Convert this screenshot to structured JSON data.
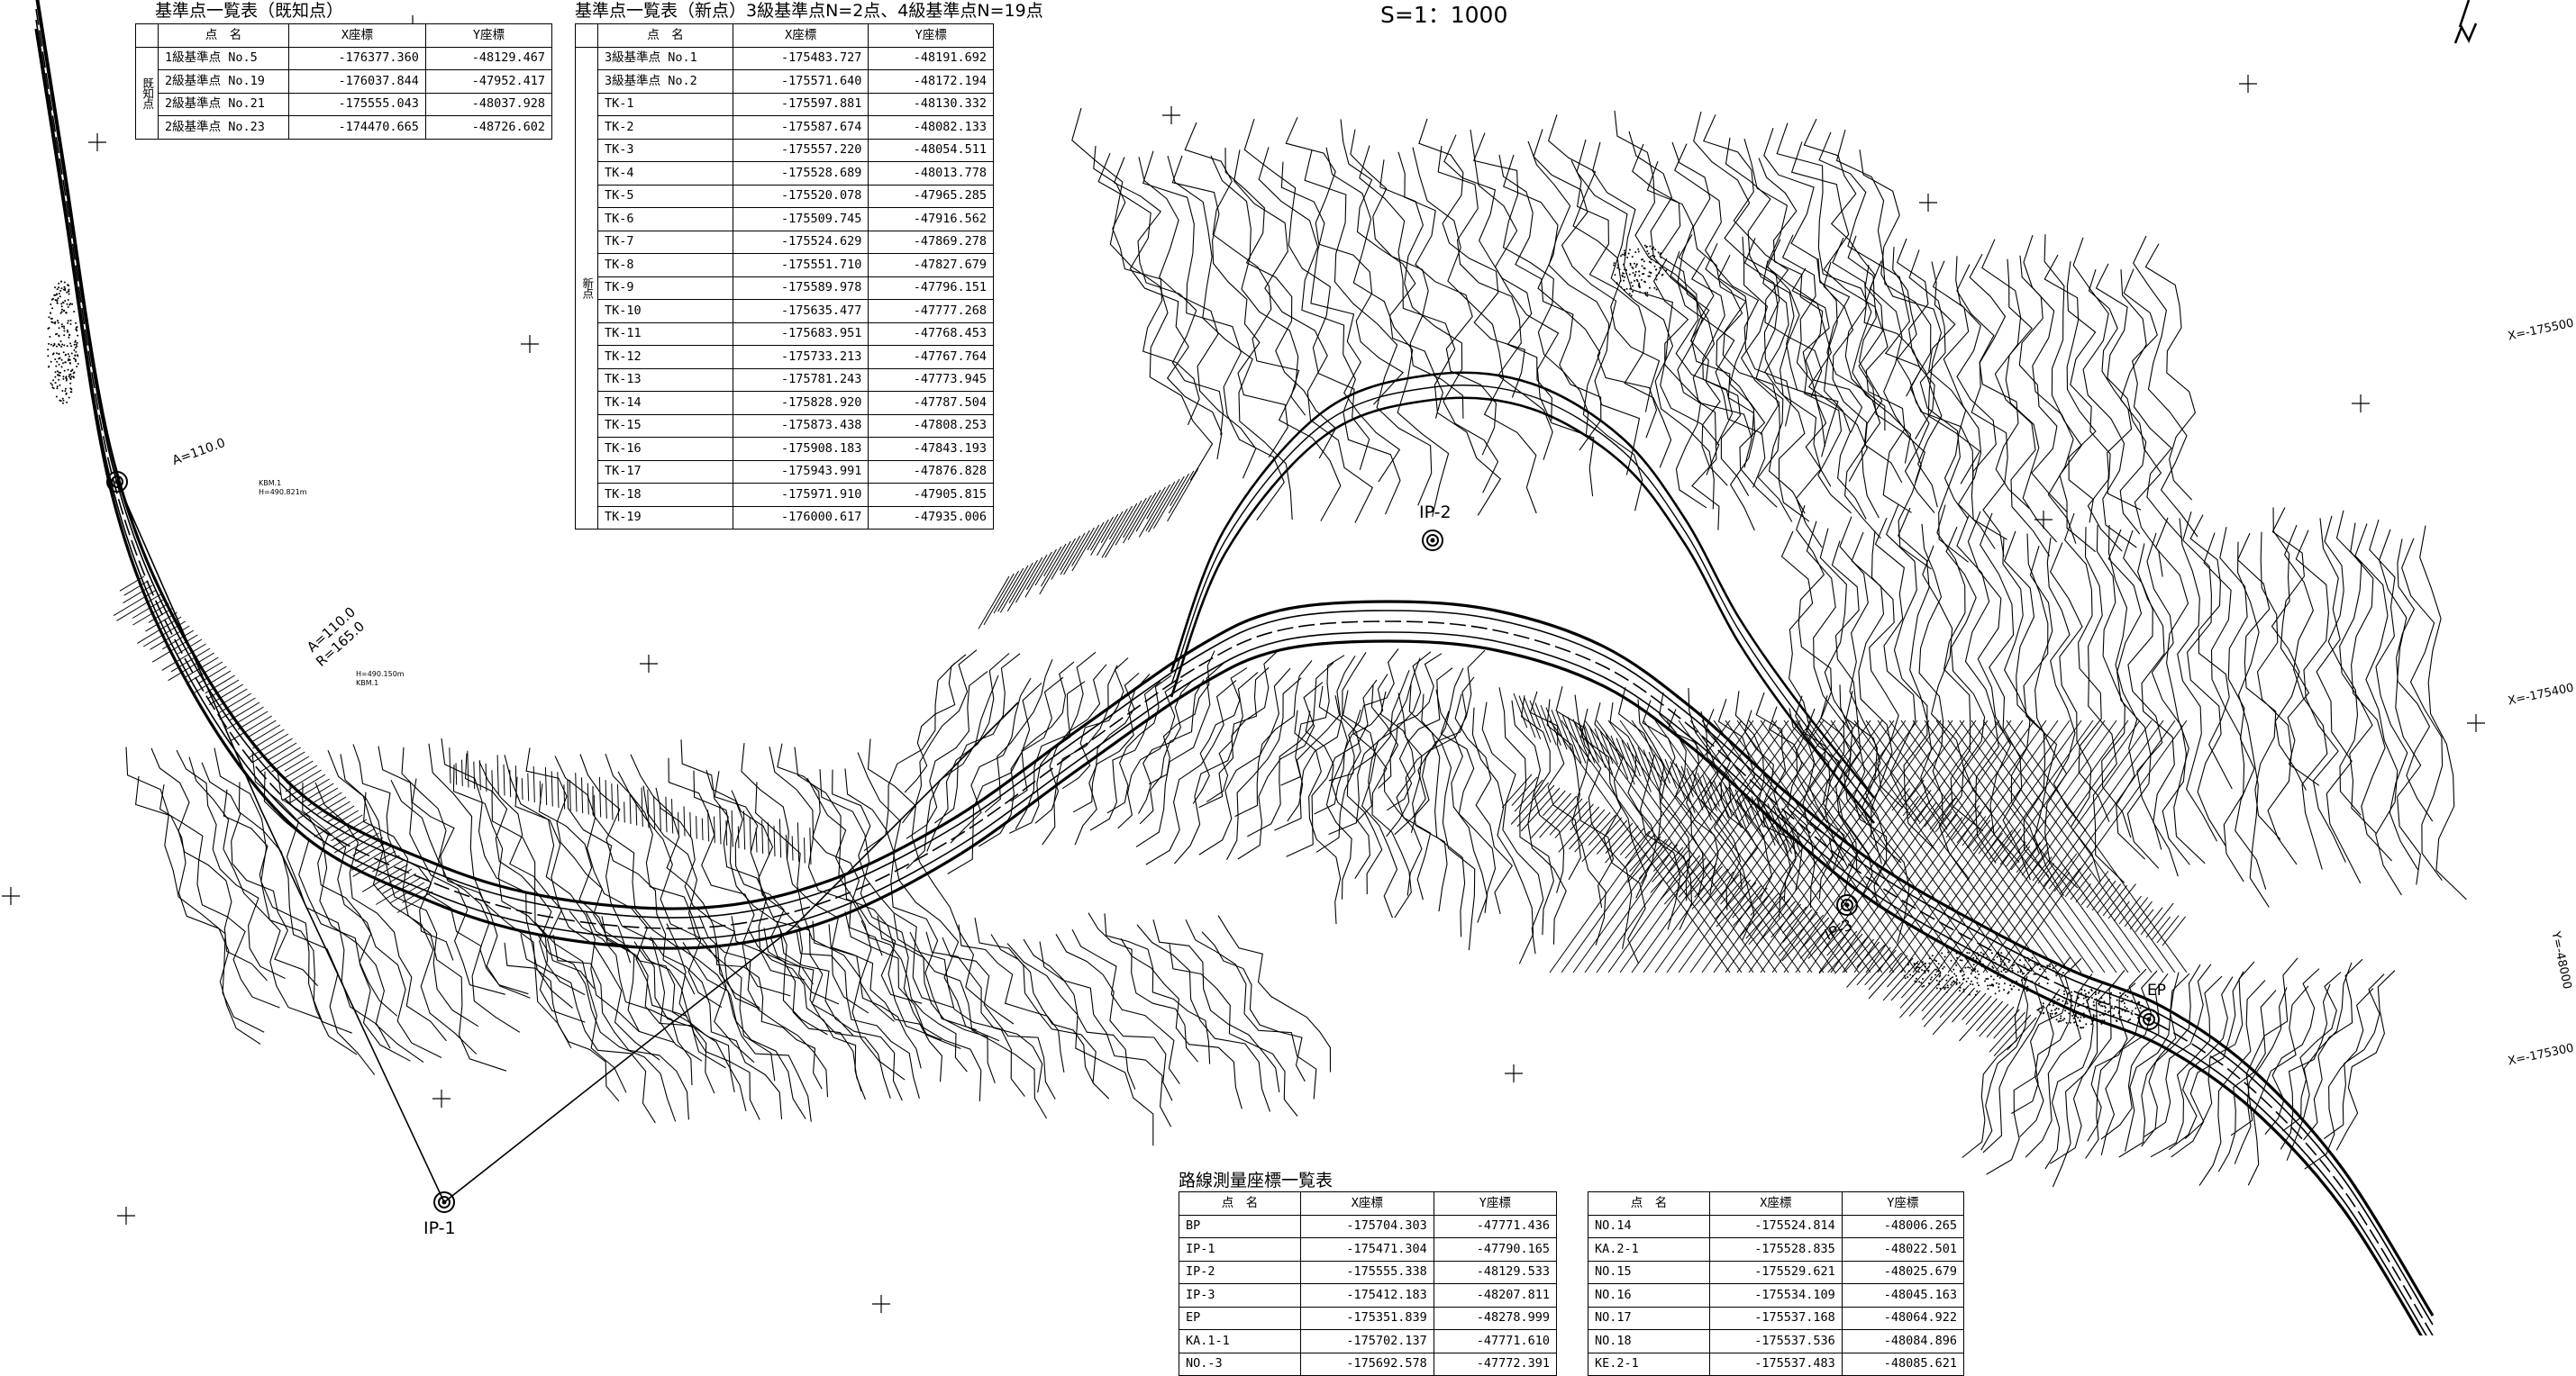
{
  "scale_text": "S=1：1000",
  "labels": {
    "ip1": "IP-1",
    "ip2": "IP-2",
    "ip3": "IP-3",
    "ep": "EP",
    "grid_x1": "X=-175500",
    "grid_x2": "X=-175400",
    "grid_x3": "X=-175300",
    "grid_y1": "Y=-48000",
    "curve1_a": "A=110.0",
    "curve1_r": "R=165.0",
    "curve_top_a": "A=110.0",
    "bm1_name": "KBM.1",
    "bm1_h": "H=490.821m",
    "bm2_name": "KBM.1",
    "bm2_h": "H=490.150m"
  },
  "table_known": {
    "title": "基準点一覧表（既知点）",
    "headers": [
      "点　名",
      "X座標",
      "Y座標"
    ],
    "group_label": "既知点",
    "rows": [
      {
        "name": "1級基準点 No.5",
        "x": "-176377.360",
        "y": "-48129.467"
      },
      {
        "name": "2級基準点 No.19",
        "x": "-176037.844",
        "y": "-47952.417"
      },
      {
        "name": "2級基準点 No.21",
        "x": "-175555.043",
        "y": "-48037.928"
      },
      {
        "name": "2級基準点 No.23",
        "x": "-174470.665",
        "y": "-48726.602"
      }
    ]
  },
  "table_new": {
    "title": "基準点一覧表（新点）3級基準点N=2点、4級基準点N=19点",
    "headers": [
      "点　名",
      "X座標",
      "Y座標"
    ],
    "group_label": "新点",
    "rows": [
      {
        "name": "3級基準点 No.1",
        "x": "-175483.727",
        "y": "-48191.692"
      },
      {
        "name": "3級基準点 No.2",
        "x": "-175571.640",
        "y": "-48172.194"
      },
      {
        "name": "TK-1",
        "x": "-175597.881",
        "y": "-48130.332"
      },
      {
        "name": "TK-2",
        "x": "-175587.674",
        "y": "-48082.133"
      },
      {
        "name": "TK-3",
        "x": "-175557.220",
        "y": "-48054.511"
      },
      {
        "name": "TK-4",
        "x": "-175528.689",
        "y": "-48013.778"
      },
      {
        "name": "TK-5",
        "x": "-175520.078",
        "y": "-47965.285"
      },
      {
        "name": "TK-6",
        "x": "-175509.745",
        "y": "-47916.562"
      },
      {
        "name": "TK-7",
        "x": "-175524.629",
        "y": "-47869.278"
      },
      {
        "name": "TK-8",
        "x": "-175551.710",
        "y": "-47827.679"
      },
      {
        "name": "TK-9",
        "x": "-175589.978",
        "y": "-47796.151"
      },
      {
        "name": "TK-10",
        "x": "-175635.477",
        "y": "-47777.268"
      },
      {
        "name": "TK-11",
        "x": "-175683.951",
        "y": "-47768.453"
      },
      {
        "name": "TK-12",
        "x": "-175733.213",
        "y": "-47767.764"
      },
      {
        "name": "TK-13",
        "x": "-175781.243",
        "y": "-47773.945"
      },
      {
        "name": "TK-14",
        "x": "-175828.920",
        "y": "-47787.504"
      },
      {
        "name": "TK-15",
        "x": "-175873.438",
        "y": "-47808.253"
      },
      {
        "name": "TK-16",
        "x": "-175908.183",
        "y": "-47843.193"
      },
      {
        "name": "TK-17",
        "x": "-175943.991",
        "y": "-47876.828"
      },
      {
        "name": "TK-18",
        "x": "-175971.910",
        "y": "-47905.815"
      },
      {
        "name": "TK-19",
        "x": "-176000.617",
        "y": "-47935.006"
      }
    ]
  },
  "table_route": {
    "title": "路線測量座標一覧表",
    "headers": [
      "点　名",
      "X座標",
      "Y座標"
    ],
    "rows": [
      {
        "name": "BP",
        "x": "-175704.303",
        "y": "-47771.436"
      },
      {
        "name": "IP-1",
        "x": "-175471.304",
        "y": "-47790.165"
      },
      {
        "name": "IP-2",
        "x": "-175555.338",
        "y": "-48129.533"
      },
      {
        "name": "IP-3",
        "x": "-175412.183",
        "y": "-48207.811"
      },
      {
        "name": "EP",
        "x": "-175351.839",
        "y": "-48278.999"
      },
      {
        "name": "KA.1-1",
        "x": "-175702.137",
        "y": "-47771.610"
      },
      {
        "name": "NO.-3",
        "x": "-175692.578",
        "y": "-47772.391"
      }
    ]
  },
  "table_route2": {
    "headers": [
      "点　名",
      "X座標",
      "Y座標"
    ],
    "rows": [
      {
        "name": "NO.14",
        "x": "-175524.814",
        "y": "-48006.265"
      },
      {
        "name": "KA.2-1",
        "x": "-175528.835",
        "y": "-48022.501"
      },
      {
        "name": "NO.15",
        "x": "-175529.621",
        "y": "-48025.679"
      },
      {
        "name": "NO.16",
        "x": "-175534.109",
        "y": "-48045.163"
      },
      {
        "name": "NO.17",
        "x": "-175537.168",
        "y": "-48064.922"
      },
      {
        "name": "NO.18",
        "x": "-175537.536",
        "y": "-48084.896"
      },
      {
        "name": "KE.2-1",
        "x": "-175537.483",
        "y": "-48085.621"
      }
    ]
  }
}
